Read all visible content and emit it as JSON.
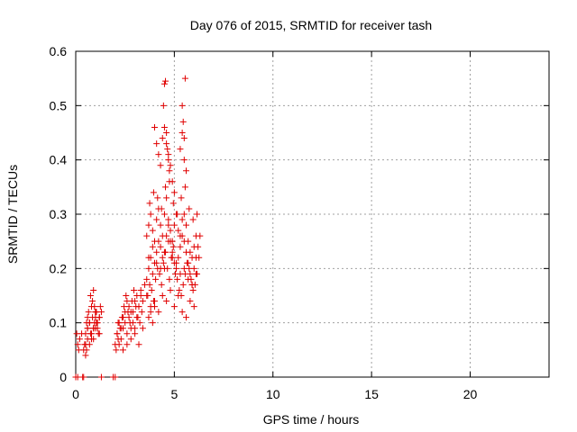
{
  "chart_data": {
    "type": "scatter",
    "title": "Day 076 of 2015, SRMTID for receiver tash",
    "xlabel": "GPS time / hours",
    "ylabel": "SRMTID / TECUs",
    "xlim": [
      0,
      24
    ],
    "ylim": [
      0,
      0.6
    ],
    "xticks": [
      0,
      5,
      10,
      15,
      20
    ],
    "yticks": [
      0,
      0.1,
      0.2,
      0.3,
      0.4,
      0.5,
      0.6
    ],
    "xtick_labels": [
      "0",
      "5",
      "10",
      "15",
      "20"
    ],
    "ytick_labels": [
      "0",
      "0.1",
      "0.2",
      "0.3",
      "0.4",
      "0.5",
      "0.6"
    ],
    "grid": true,
    "marker": "+",
    "series": [
      {
        "name": "SRMTID",
        "color": "#e00000",
        "x": [
          0.05,
          0.1,
          0.15,
          0.2,
          0.3,
          0.4,
          0.5,
          0.6,
          0.7,
          0.75,
          0.8,
          0.9,
          1.0,
          1.05,
          1.1,
          1.2,
          1.3,
          0.45,
          0.5,
          0.55,
          0.6,
          0.65,
          0.7,
          0.8,
          0.85,
          0.9,
          0.95,
          1.0,
          1.1,
          1.15,
          1.2,
          1.25,
          0.5,
          0.55,
          0.6,
          0.7,
          0.8,
          0.9,
          1.0,
          1.1,
          1.2,
          0.75,
          0.85,
          0.95,
          1.05,
          0.6,
          0.9,
          1.0,
          2.0,
          2.1,
          2.2,
          2.3,
          2.4,
          2.5,
          2.6,
          2.7,
          2.8,
          2.9,
          3.0,
          3.1,
          3.2,
          3.3,
          3.4,
          2.05,
          2.15,
          2.25,
          2.35,
          2.45,
          2.55,
          2.65,
          2.75,
          2.85,
          2.95,
          3.05,
          3.15,
          3.25,
          3.35,
          2.1,
          2.2,
          2.3,
          2.4,
          2.5,
          2.6,
          2.7,
          2.8,
          2.9,
          3.0,
          3.1,
          3.2,
          3.3,
          3.5,
          3.6,
          2.15,
          2.4,
          2.6,
          2.8,
          3.0,
          3.2,
          3.4,
          3.7,
          3.8,
          3.9,
          4.0,
          3.6,
          3.7,
          3.8,
          3.9,
          4.0,
          4.1,
          4.2,
          4.3,
          4.4,
          4.5,
          4.6,
          4.7,
          4.8,
          4.9,
          5.0,
          3.65,
          3.75,
          3.85,
          3.95,
          4.05,
          4.15,
          4.25,
          4.35,
          4.45,
          4.55,
          4.65,
          4.75,
          4.85,
          4.95,
          5.05,
          5.1,
          5.2,
          5.3,
          5.4,
          5.5,
          5.6,
          5.7,
          5.8,
          5.9,
          6.0,
          6.1,
          6.2,
          6.3,
          5.15,
          5.25,
          5.35,
          5.45,
          5.55,
          5.65,
          5.75,
          5.85,
          5.95,
          6.05,
          6.15,
          6.25,
          3.6,
          3.7,
          3.8,
          3.9,
          4.0,
          4.1,
          4.2,
          4.3,
          4.4,
          4.5,
          4.6,
          4.7,
          4.8,
          4.9,
          5.0,
          5.1,
          5.2,
          5.3,
          5.4,
          5.5,
          5.6,
          5.7,
          5.8,
          5.9,
          6.0,
          6.1,
          3.8,
          4.0,
          4.2,
          4.4,
          4.6,
          4.8,
          5.0,
          5.2,
          5.4,
          5.6,
          5.8,
          6.0,
          3.7,
          3.9,
          4.1,
          4.3,
          4.5,
          4.7,
          4.9,
          5.1,
          5.3,
          5.5,
          5.7,
          5.9,
          6.1,
          3.75,
          3.95,
          4.15,
          4.35,
          4.55,
          4.75,
          4.95,
          5.15,
          5.35,
          5.55,
          5.75,
          5.95,
          6.15,
          4.45,
          4.5,
          4.55,
          4.6,
          4.65,
          4.7,
          4.75,
          5.4,
          5.45,
          5.5,
          5.55,
          4.4,
          4.5,
          4.6,
          4.7,
          4.8,
          5.3,
          5.4,
          5.5,
          5.6,
          4.0,
          4.1,
          4.2,
          4.3,
          4.9,
          5.0,
          0.0,
          0.1,
          0.35,
          0.4,
          1.3,
          1.9,
          2.0
        ],
        "y": [
          0.08,
          0.06,
          0.05,
          0.07,
          0.08,
          0.05,
          0.06,
          0.09,
          0.1,
          0.08,
          0.07,
          0.09,
          0.11,
          0.1,
          0.09,
          0.08,
          0.12,
          0.06,
          0.08,
          0.1,
          0.09,
          0.12,
          0.1,
          0.13,
          0.11,
          0.09,
          0.1,
          0.12,
          0.1,
          0.08,
          0.11,
          0.13,
          0.04,
          0.05,
          0.07,
          0.06,
          0.08,
          0.07,
          0.09,
          0.1,
          0.11,
          0.15,
          0.14,
          0.13,
          0.12,
          0.11,
          0.16,
          0.12,
          0.06,
          0.08,
          0.1,
          0.09,
          0.11,
          0.12,
          0.14,
          0.13,
          0.12,
          0.1,
          0.09,
          0.11,
          0.13,
          0.15,
          0.14,
          0.05,
          0.07,
          0.09,
          0.11,
          0.13,
          0.15,
          0.12,
          0.1,
          0.14,
          0.16,
          0.13,
          0.11,
          0.1,
          0.12,
          0.08,
          0.06,
          0.07,
          0.09,
          0.1,
          0.08,
          0.11,
          0.09,
          0.12,
          0.14,
          0.15,
          0.13,
          0.16,
          0.17,
          0.15,
          0.1,
          0.05,
          0.06,
          0.07,
          0.08,
          0.06,
          0.09,
          0.11,
          0.12,
          0.1,
          0.13,
          0.18,
          0.2,
          0.22,
          0.19,
          0.21,
          0.23,
          0.25,
          0.24,
          0.22,
          0.2,
          0.26,
          0.28,
          0.25,
          0.23,
          0.21,
          0.15,
          0.17,
          0.16,
          0.14,
          0.18,
          0.2,
          0.19,
          0.17,
          0.21,
          0.23,
          0.2,
          0.18,
          0.22,
          0.24,
          0.19,
          0.2,
          0.22,
          0.24,
          0.26,
          0.25,
          0.23,
          0.21,
          0.19,
          0.17,
          0.2,
          0.22,
          0.24,
          0.26,
          0.18,
          0.16,
          0.15,
          0.17,
          0.19,
          0.21,
          0.2,
          0.18,
          0.16,
          0.17,
          0.19,
          0.22,
          0.26,
          0.28,
          0.3,
          0.27,
          0.25,
          0.29,
          0.31,
          0.28,
          0.26,
          0.3,
          0.33,
          0.29,
          0.27,
          0.25,
          0.28,
          0.3,
          0.27,
          0.26,
          0.29,
          0.3,
          0.28,
          0.25,
          0.23,
          0.22,
          0.24,
          0.26,
          0.13,
          0.14,
          0.12,
          0.15,
          0.14,
          0.16,
          0.13,
          0.15,
          0.12,
          0.11,
          0.14,
          0.13,
          0.22,
          0.24,
          0.21,
          0.2,
          0.23,
          0.25,
          0.22,
          0.21,
          0.19,
          0.2,
          0.18,
          0.17,
          0.19,
          0.32,
          0.34,
          0.33,
          0.31,
          0.35,
          0.36,
          0.32,
          0.3,
          0.33,
          0.35,
          0.31,
          0.29,
          0.3,
          0.5,
          0.54,
          0.545,
          0.45,
          0.42,
          0.4,
          0.38,
          0.5,
          0.47,
          0.44,
          0.55,
          0.44,
          0.46,
          0.43,
          0.41,
          0.39,
          0.42,
          0.45,
          0.4,
          0.38,
          0.46,
          0.43,
          0.41,
          0.39,
          0.36,
          0.34,
          0.0,
          0.0,
          0.0,
          0.0,
          0.0,
          0.0,
          0.0
        ]
      }
    ]
  }
}
